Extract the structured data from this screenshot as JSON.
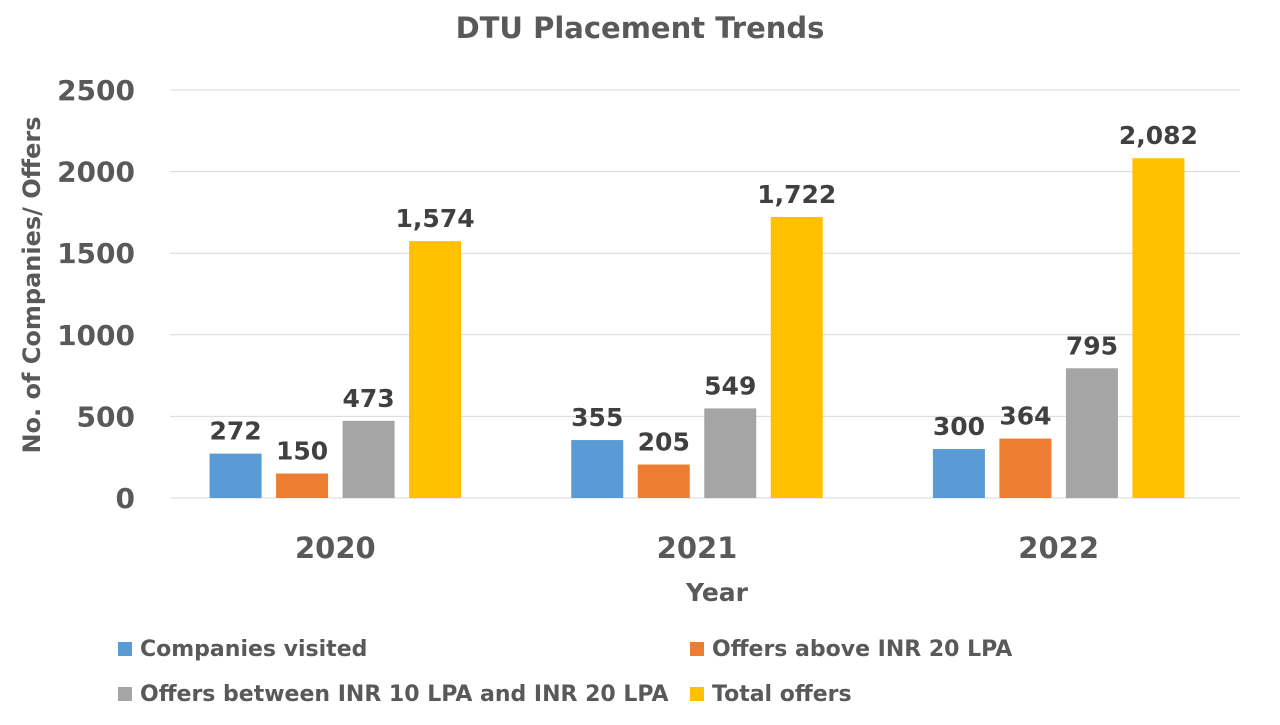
{
  "chart_data": {
    "type": "bar",
    "title": "DTU Placement Trends",
    "xlabel": "Year",
    "ylabel": "No. of Companies/ Offers",
    "categories": [
      "2020",
      "2021",
      "2022"
    ],
    "ylim": [
      0,
      2500
    ],
    "yticks": [
      "0",
      "500",
      "1000",
      "1500",
      "2000",
      "2500"
    ],
    "grid": true,
    "legend_position": "bottom",
    "series": [
      {
        "name": "Companies visited",
        "color": "#5B9BD5",
        "values": [
          272,
          355,
          300
        ],
        "labels": [
          "272",
          "355",
          "300"
        ]
      },
      {
        "name": "Offers above INR 20 LPA",
        "color": "#ED7D31",
        "values": [
          150,
          205,
          364
        ],
        "labels": [
          "150",
          "205",
          "364"
        ]
      },
      {
        "name": "Offers between INR 10 LPA and INR 20 LPA",
        "color": "#A5A5A5",
        "values": [
          473,
          549,
          795
        ],
        "labels": [
          "473",
          "549",
          "795"
        ]
      },
      {
        "name": "Total offers",
        "color": "#FFC000",
        "values": [
          1574,
          1722,
          2082
        ],
        "labels": [
          "1,574",
          "1,722",
          "2,082"
        ]
      }
    ]
  }
}
